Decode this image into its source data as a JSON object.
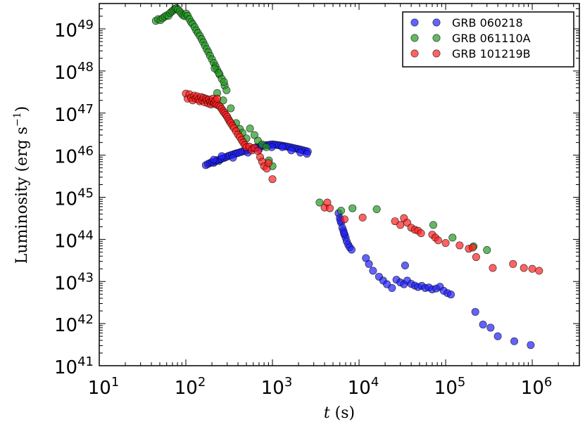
{
  "chart_data": {
    "type": "scatter",
    "title": "",
    "xlabel": "t (s)",
    "ylabel": "Luminosity (erg s^-1)",
    "xscale": "log",
    "yscale": "log",
    "xlim": [
      10,
      3500000
    ],
    "ylim": [
      1e+41,
      4e+49
    ],
    "x_ticks": [
      {
        "value": 10,
        "base": "10",
        "exp": "1"
      },
      {
        "value": 100,
        "base": "10",
        "exp": "2"
      },
      {
        "value": 1000,
        "base": "10",
        "exp": "3"
      },
      {
        "value": 10000,
        "base": "10",
        "exp": "4"
      },
      {
        "value": 100000,
        "base": "10",
        "exp": "5"
      },
      {
        "value": 1000000,
        "base": "10",
        "exp": "6"
      }
    ],
    "y_ticks": [
      {
        "value": 1e+41,
        "base": "10",
        "exp": "41"
      },
      {
        "value": 1e+42,
        "base": "10",
        "exp": "42"
      },
      {
        "value": 1e+43,
        "base": "10",
        "exp": "43"
      },
      {
        "value": 1e+44,
        "base": "10",
        "exp": "44"
      },
      {
        "value": 1e+45,
        "base": "10",
        "exp": "45"
      },
      {
        "value": 1e+46,
        "base": "10",
        "exp": "46"
      },
      {
        "value": 1e+47,
        "base": "10",
        "exp": "47"
      },
      {
        "value": 1e+48,
        "base": "10",
        "exp": "48"
      },
      {
        "value": 1e+49,
        "base": "10",
        "exp": "49"
      }
    ],
    "legend_position": "top-right",
    "series": [
      {
        "name": "GRB 060218",
        "color": "#2020ff",
        "points": [
          [
            170,
            5.8e+45
          ],
          [
            180,
            6.2e+45
          ],
          [
            190,
            6.5e+45
          ],
          [
            200,
            6.8e+45
          ],
          [
            210,
            6.6e+45
          ],
          [
            220,
            7.2e+45
          ],
          [
            230,
            7.6e+45
          ],
          [
            240,
            7.3e+45
          ],
          [
            250,
            8e+45
          ],
          [
            260,
            8.3e+45
          ],
          [
            275,
            8.6e+45
          ],
          [
            290,
            9e+45
          ],
          [
            305,
            9.4e+45
          ],
          [
            320,
            9.8e+45
          ],
          [
            340,
            1.02e+46
          ],
          [
            360,
            1.06e+46
          ],
          [
            380,
            1.1e+46
          ],
          [
            400,
            1.13e+46
          ],
          [
            425,
            1.18e+46
          ],
          [
            450,
            1.22e+46
          ],
          [
            480,
            1.27e+46
          ],
          [
            510,
            1.32e+46
          ],
          [
            540,
            1.37e+46
          ],
          [
            570,
            1.42e+46
          ],
          [
            600,
            1.47e+46
          ],
          [
            640,
            1.52e+46
          ],
          [
            680,
            1.57e+46
          ],
          [
            720,
            1.62e+46
          ],
          [
            760,
            1.66e+46
          ],
          [
            800,
            1.7e+46
          ],
          [
            850,
            1.73e+46
          ],
          [
            900,
            1.75e+46
          ],
          [
            950,
            1.78e+46
          ],
          [
            1000,
            1.8e+46
          ],
          [
            1060,
            1.78e+46
          ],
          [
            1120,
            1.75e+46
          ],
          [
            1190,
            1.72e+46
          ],
          [
            1260,
            1.7e+46
          ],
          [
            1340,
            1.66e+46
          ],
          [
            1420,
            1.62e+46
          ],
          [
            1510,
            1.58e+46
          ],
          [
            1600,
            1.54e+46
          ],
          [
            1700,
            1.5e+46
          ],
          [
            1800,
            1.46e+46
          ],
          [
            1910,
            1.42e+46
          ],
          [
            2030,
            1.38e+46
          ],
          [
            2150,
            1.34e+46
          ],
          [
            2280,
            1.3e+46
          ],
          [
            2420,
            1.26e+46
          ],
          [
            2560,
            1.22e+46
          ],
          [
            210,
            7.8e+45
          ],
          [
            260,
            9.5e+45
          ],
          [
            350,
            8.7e+45
          ],
          [
            520,
            1.15e+46
          ],
          [
            700,
            1.38e+46
          ],
          [
            980,
            1.55e+46
          ],
          [
            1300,
            1.55e+46
          ],
          [
            1650,
            1.3e+46
          ],
          [
            2100,
            1.15e+46
          ],
          [
            2500,
            1.08e+46
          ],
          [
            5800,
            4.2e+44
          ],
          [
            6000,
            3.2e+44
          ],
          [
            6200,
            2.5e+44
          ],
          [
            6400,
            1.9e+44
          ],
          [
            6600,
            1.6e+44
          ],
          [
            6800,
            1.3e+44
          ],
          [
            7000,
            1.1e+44
          ],
          [
            7200,
            9e+43
          ],
          [
            7500,
            7.5e+43
          ],
          [
            7800,
            6.5e+43
          ],
          [
            8200,
            5.7e+43
          ],
          [
            6100,
            2.8e+44
          ],
          [
            6700,
            1.4e+44
          ],
          [
            12000,
            3.6e+43
          ],
          [
            13000,
            2.6e+43
          ],
          [
            14500,
            1.8e+43
          ],
          [
            17000,
            1.3e+43
          ],
          [
            19000,
            1.05e+43
          ],
          [
            21000,
            8.6e+42
          ],
          [
            24000,
            7e+42
          ],
          [
            27000,
            1.1e+43
          ],
          [
            30000,
            9.5e+42
          ],
          [
            33000,
            8.6e+42
          ],
          [
            36000,
            1.05e+43
          ],
          [
            40000,
            8.8e+42
          ],
          [
            44000,
            8e+42
          ],
          [
            48000,
            7.4e+42
          ],
          [
            53000,
            7.9e+42
          ],
          [
            58000,
            7e+42
          ],
          [
            64000,
            7.2e+42
          ],
          [
            70000,
            6.5e+42
          ],
          [
            78000,
            6.8e+42
          ],
          [
            86000,
            7.5e+42
          ],
          [
            95000,
            6e+42
          ],
          [
            105000,
            5.3e+42
          ],
          [
            115000,
            4.9e+42
          ],
          [
            34000,
            2.4e+43
          ],
          [
            220000,
            1.9e+42
          ],
          [
            270000,
            9.5e+41
          ],
          [
            330000,
            8e+41
          ],
          [
            400000,
            5e+41
          ],
          [
            620000,
            3.8e+41
          ],
          [
            960000,
            3.1e+41
          ]
        ]
      },
      {
        "name": "GRB 061110A",
        "color": "#229922",
        "points": [
          [
            45,
            1.55e+49
          ],
          [
            48,
            1.7e+49
          ],
          [
            51,
            1.62e+49
          ],
          [
            54,
            1.8e+49
          ],
          [
            57,
            1.95e+49
          ],
          [
            60,
            2.1e+49
          ],
          [
            63,
            2.05e+49
          ],
          [
            66,
            2.4e+49
          ],
          [
            69,
            2.6e+49
          ],
          [
            72,
            2.8e+49
          ],
          [
            75,
            3e+49
          ],
          [
            78,
            3.1e+49
          ],
          [
            81,
            2.9e+49
          ],
          [
            85,
            2.6e+49
          ],
          [
            89,
            2.3e+49
          ],
          [
            93,
            2.1e+49
          ],
          [
            97,
            2e+49
          ],
          [
            101,
            2.3e+49
          ],
          [
            105,
            2.05e+49
          ],
          [
            110,
            1.7e+49
          ],
          [
            115,
            1.45e+49
          ],
          [
            120,
            1.3e+49
          ],
          [
            126,
            1.1e+49
          ],
          [
            132,
            9.2e+48
          ],
          [
            138,
            8e+48
          ],
          [
            145,
            6.8e+48
          ],
          [
            152,
            5.7e+48
          ],
          [
            159,
            4.8e+48
          ],
          [
            166,
            4e+48
          ],
          [
            174,
            3.3e+48
          ],
          [
            182,
            2.8e+48
          ],
          [
            190,
            2.3e+48
          ],
          [
            200,
            1.9e+48
          ],
          [
            210,
            1.55e+48
          ],
          [
            220,
            1.3e+48
          ],
          [
            230,
            1.05e+48
          ],
          [
            245,
            8.2e+47
          ],
          [
            260,
            6.5e+47
          ],
          [
            280,
            4.5e+47
          ],
          [
            215,
            1.15e+48
          ],
          [
            240,
            9e+47
          ],
          [
            275,
            5.5e+47
          ],
          [
            295,
            3.5e+47
          ],
          [
            230,
            3e+47
          ],
          [
            270,
            2e+47
          ],
          [
            330,
            1.3e+47
          ],
          [
            380,
            5.8e+46
          ],
          [
            420,
            4.2e+46
          ],
          [
            450,
            3.4e+46
          ],
          [
            500,
            2.5e+46
          ],
          [
            550,
            4.3e+46
          ],
          [
            620,
            3e+46
          ],
          [
            680,
            2.2e+46
          ],
          [
            760,
            1.8e+46
          ],
          [
            850,
            1.55e+46
          ],
          [
            1000,
            5.5e+45
          ],
          [
            910,
            7.5e+45
          ],
          [
            3500,
            7.5e+44
          ],
          [
            6200,
            4.8e+44
          ],
          [
            8400,
            5.5e+44
          ],
          [
            16000,
            5.2e+44
          ],
          [
            72000,
            2.2e+44
          ],
          [
            120000,
            1.1e+44
          ],
          [
            210000,
            6.8e+43
          ],
          [
            300000,
            5.6e+43
          ]
        ]
      },
      {
        "name": "GRB 101219B",
        "color": "#ff2020",
        "points": [
          [
            100,
            2.9e+47
          ],
          [
            105,
            2.2e+47
          ],
          [
            110,
            2.8e+47
          ],
          [
            115,
            2.3e+47
          ],
          [
            120,
            2e+47
          ],
          [
            125,
            2.6e+47
          ],
          [
            130,
            2.2e+47
          ],
          [
            135,
            2.5e+47
          ],
          [
            140,
            2.1e+47
          ],
          [
            145,
            1.9e+47
          ],
          [
            150,
            2.4e+47
          ],
          [
            155,
            2e+47
          ],
          [
            160,
            2.3e+47
          ],
          [
            165,
            1.8e+47
          ],
          [
            170,
            2.2e+47
          ],
          [
            175,
            2e+47
          ],
          [
            180,
            1.7e+47
          ],
          [
            185,
            2.1e+47
          ],
          [
            190,
            1.85e+47
          ],
          [
            195,
            1.6e+47
          ],
          [
            200,
            1.9e+47
          ],
          [
            205,
            2.2e+47
          ],
          [
            210,
            1.7e+47
          ],
          [
            215,
            1.8e+47
          ],
          [
            220,
            2e+47
          ],
          [
            225,
            1.6e+47
          ],
          [
            230,
            2.2e+47
          ],
          [
            240,
            1.5e+47
          ],
          [
            250,
            1.4e+47
          ],
          [
            260,
            1.25e+47
          ],
          [
            270,
            1.1e+47
          ],
          [
            280,
            1e+47
          ],
          [
            290,
            9e+46
          ],
          [
            300,
            8.2e+46
          ],
          [
            310,
            7.2e+46
          ],
          [
            320,
            6.4e+46
          ],
          [
            330,
            5.8e+46
          ],
          [
            345,
            5e+46
          ],
          [
            360,
            4.4e+46
          ],
          [
            380,
            3.7e+46
          ],
          [
            400,
            3.1e+46
          ],
          [
            420,
            2.7e+46
          ],
          [
            440,
            2.3e+46
          ],
          [
            460,
            2e+46
          ],
          [
            480,
            1.75e+46
          ],
          [
            500,
            1.55e+46
          ],
          [
            540,
            1.6e+46
          ],
          [
            580,
            1.3e+46
          ],
          [
            620,
            1.5e+46
          ],
          [
            680,
            1.25e+46
          ],
          [
            720,
            9e+45
          ],
          [
            760,
            7e+45
          ],
          [
            800,
            5.5e+45
          ],
          [
            860,
            4.8e+45
          ],
          [
            900,
            6.5e+45
          ],
          [
            1000,
            2.7e+45
          ],
          [
            4000,
            5.7e+44
          ],
          [
            4300,
            7.5e+44
          ],
          [
            4600,
            5.5e+44
          ],
          [
            6800,
            3e+44
          ],
          [
            11000,
            3.3e+44
          ],
          [
            26000,
            2.7e+44
          ],
          [
            30000,
            2.2e+44
          ],
          [
            33000,
            3.2e+44
          ],
          [
            36000,
            2.5e+44
          ],
          [
            40000,
            1.9e+44
          ],
          [
            44000,
            1.7e+44
          ],
          [
            48000,
            1.6e+44
          ],
          [
            52000,
            1.4e+44
          ],
          [
            70000,
            1.3e+44
          ],
          [
            76000,
            1.1e+44
          ],
          [
            82000,
            9.5e+43
          ],
          [
            100000,
            8.2e+43
          ],
          [
            145000,
            7.2e+43
          ],
          [
            185000,
            6e+43
          ],
          [
            205000,
            6.4e+43
          ],
          [
            225000,
            3.8e+43
          ],
          [
            350000,
            2.1e+43
          ],
          [
            600000,
            2.6e+43
          ],
          [
            800000,
            2.1e+43
          ],
          [
            1000000,
            2e+43
          ],
          [
            1200000,
            1.8e+43
          ]
        ]
      }
    ]
  }
}
